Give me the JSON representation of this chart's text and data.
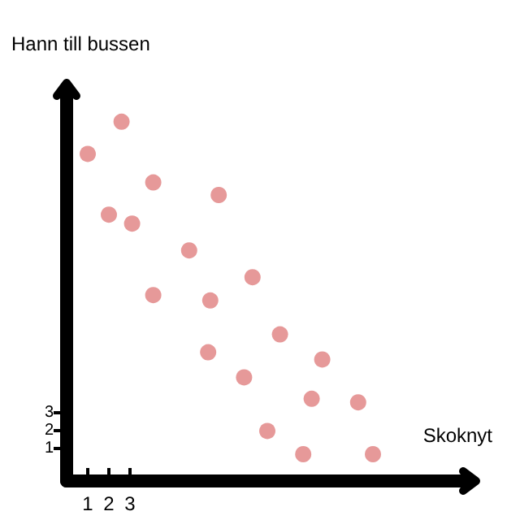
{
  "chart_data": {
    "type": "scatter",
    "xlabel": "Skoknyt",
    "ylabel": "Hann till bussen",
    "x": [
      1.0,
      2.6,
      4.1,
      7.2,
      2.0,
      3.1,
      5.8,
      8.8,
      4.1,
      6.8,
      10.1,
      6.7,
      12.1,
      8.4,
      11.6,
      13.8,
      9.5,
      11.2,
      14.5
    ],
    "series": [
      {
        "color": "#e08080",
        "values": [
          17.5,
          19.3,
          15.9,
          15.2,
          14.1,
          13.6,
          12.1,
          10.6,
          9.6,
          9.3,
          7.4,
          6.4,
          6.0,
          5.0,
          3.8,
          3.6,
          2.0,
          0.7,
          0.7
        ]
      }
    ],
    "xlim": [
      0,
      19
    ],
    "ylim": [
      -0.8,
      21
    ],
    "xticks": [
      1,
      2,
      3
    ],
    "yticks": [
      1,
      2,
      3
    ],
    "marker": "circle",
    "grid": false
  }
}
